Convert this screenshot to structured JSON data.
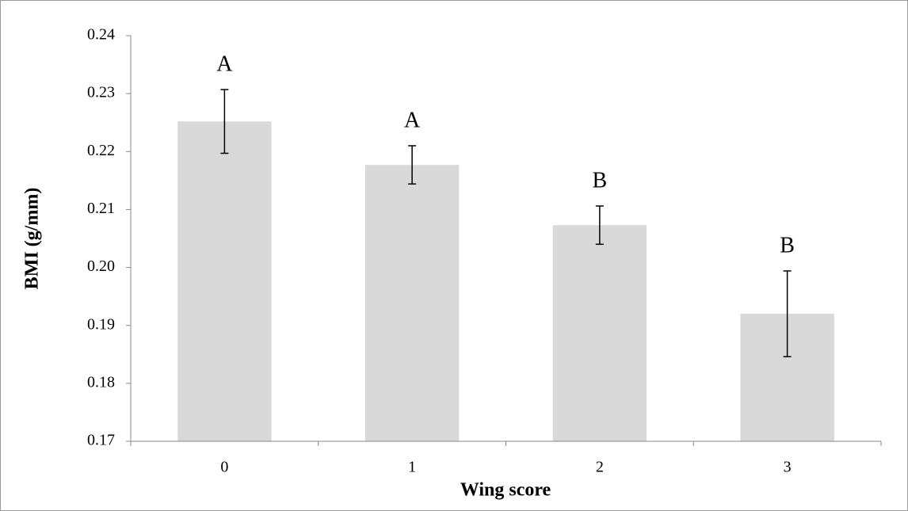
{
  "chart_data": {
    "type": "bar",
    "categories": [
      "0",
      "1",
      "2",
      "3"
    ],
    "values": [
      0.2252,
      0.2177,
      0.2073,
      0.192
    ],
    "errors": [
      0.0055,
      0.0033,
      0.0033,
      0.0074
    ],
    "annotations": [
      "A",
      "A",
      "B",
      "B"
    ],
    "color": "#d9d9d9",
    "x_label": "Wing score",
    "y_label": "BMI (g/mm)",
    "ylim": [
      0.17,
      0.24
    ],
    "yticks": [
      0.17,
      0.18,
      0.19,
      {
        "value": 0.2,
        "label": "0.20"
      },
      0.21,
      0.22,
      0.23,
      0.24
    ]
  }
}
